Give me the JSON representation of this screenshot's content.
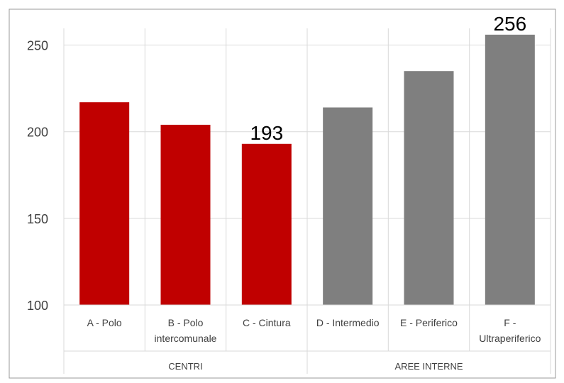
{
  "chart_data": {
    "type": "bar",
    "categories": [
      "A - Polo",
      "B - Polo intercomunale",
      "C - Cintura",
      "D - Intermedio",
      "E - Periferico",
      "F - Ultraperiferico"
    ],
    "category_lines": [
      [
        "A - Polo"
      ],
      [
        "B - Polo",
        "intercomunale"
      ],
      [
        "C - Cintura"
      ],
      [
        "D - Intermedio"
      ],
      [
        "E - Periferico"
      ],
      [
        "F -",
        "Ultraperiferico"
      ]
    ],
    "values": [
      217,
      204,
      193,
      214,
      235,
      256
    ],
    "bar_colors": [
      "#c00000",
      "#c00000",
      "#c00000",
      "#7f7f7f",
      "#7f7f7f",
      "#7f7f7f"
    ],
    "data_labels": [
      {
        "index": 2,
        "text": "193"
      },
      {
        "index": 5,
        "text": "256"
      }
    ],
    "groups": [
      {
        "name": "CENTRI",
        "start": 0,
        "end": 2
      },
      {
        "name": "AREE INTERNE",
        "start": 3,
        "end": 5
      }
    ],
    "ylim": [
      100,
      260
    ],
    "yticks": [
      100,
      150,
      200,
      250
    ],
    "ytick_labels": [
      "100",
      "150",
      "200",
      "250"
    ],
    "grid": true,
    "legend": "none",
    "title": "",
    "xlabel": "",
    "ylabel": ""
  }
}
